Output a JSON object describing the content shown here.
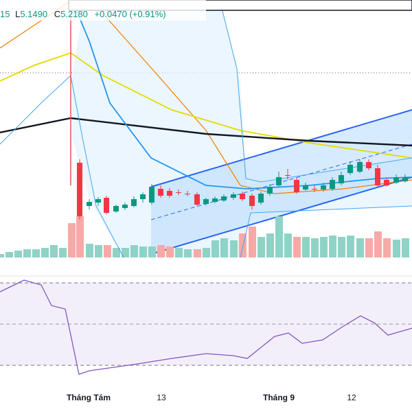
{
  "header": {
    "high_partial": "15",
    "low_label": "L",
    "low": "5.1490",
    "close_label": "C",
    "close": "5.2180",
    "change": "+0.0470 (+0.91%)"
  },
  "x_axis": {
    "labels": [
      "Tháng Tám",
      "13",
      "Tháng 9",
      "12"
    ]
  }
}
